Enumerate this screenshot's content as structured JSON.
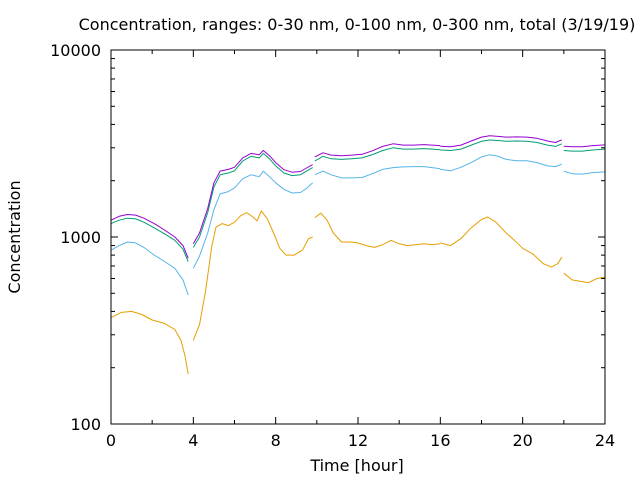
{
  "chart_data": {
    "type": "line",
    "title": "Concentration, ranges: 0-30 nm, 0-100 nm, 0-300 nm, total (3/19/19)",
    "xlabel": "Time [hour]",
    "ylabel": "Concentration",
    "xlim": [
      0,
      24
    ],
    "ylim": [
      100,
      10000
    ],
    "yscale": "log",
    "grid": false,
    "x_ticks": [
      "0",
      "4",
      "8",
      "12",
      "16",
      "20",
      "24"
    ],
    "y_ticks": [
      "100",
      "1000",
      "10000"
    ],
    "series": [
      {
        "color": "#e69f00",
        "segments": [
          [
            [
              0,
              370
            ],
            [
              0.5,
              395
            ],
            [
              1,
              400
            ],
            [
              1.5,
              385
            ],
            [
              2,
              360
            ],
            [
              2.6,
              345
            ],
            [
              3.1,
              320
            ],
            [
              3.4,
              280
            ],
            [
              3.6,
              230
            ],
            [
              3.75,
              185
            ]
          ],
          [
            [
              4,
              280
            ],
            [
              4.3,
              340
            ],
            [
              4.6,
              520
            ],
            [
              4.9,
              900
            ],
            [
              5.1,
              1130
            ],
            [
              5.4,
              1180
            ],
            [
              5.7,
              1150
            ],
            [
              6,
              1200
            ],
            [
              6.3,
              1300
            ],
            [
              6.6,
              1350
            ],
            [
              6.9,
              1280
            ],
            [
              7.1,
              1220
            ],
            [
              7.3,
              1380
            ],
            [
              7.6,
              1250
            ],
            [
              7.9,
              1050
            ],
            [
              8.2,
              870
            ],
            [
              8.5,
              800
            ],
            [
              8.9,
              800
            ],
            [
              9.3,
              850
            ],
            [
              9.6,
              980
            ],
            [
              9.8,
              1000
            ]
          ],
          [
            [
              9.9,
              1270
            ],
            [
              10.2,
              1340
            ],
            [
              10.5,
              1230
            ],
            [
              10.8,
              1050
            ],
            [
              11.2,
              940
            ],
            [
              11.6,
              940
            ],
            [
              12,
              930
            ],
            [
              12.4,
              900
            ],
            [
              12.8,
              880
            ],
            [
              13.2,
              910
            ],
            [
              13.6,
              960
            ],
            [
              14,
              920
            ],
            [
              14.4,
              900
            ],
            [
              14.8,
              910
            ],
            [
              15.2,
              920
            ],
            [
              15.6,
              910
            ],
            [
              16,
              920
            ]
          ],
          [
            [
              16,
              930
            ],
            [
              16.5,
              900
            ],
            [
              17,
              980
            ],
            [
              17.5,
              1120
            ],
            [
              18,
              1240
            ],
            [
              18.3,
              1280
            ],
            [
              18.7,
              1200
            ],
            [
              19.2,
              1050
            ],
            [
              19.6,
              960
            ],
            [
              20,
              870
            ],
            [
              20.5,
              810
            ],
            [
              21,
              720
            ],
            [
              21.4,
              690
            ],
            [
              21.7,
              720
            ],
            [
              21.9,
              780
            ]
          ],
          [
            [
              22,
              640
            ],
            [
              22.4,
              590
            ],
            [
              22.8,
              580
            ],
            [
              23.2,
              570
            ],
            [
              23.6,
              600
            ],
            [
              24,
              610
            ]
          ]
        ]
      },
      {
        "color": "#56b4e9",
        "segments": [
          [
            [
              0,
              850
            ],
            [
              0.4,
              900
            ],
            [
              0.8,
              940
            ],
            [
              1.2,
              930
            ],
            [
              1.6,
              880
            ],
            [
              2.1,
              800
            ],
            [
              2.6,
              740
            ],
            [
              3.1,
              680
            ],
            [
              3.5,
              590
            ],
            [
              3.75,
              490
            ]
          ],
          [
            [
              4,
              680
            ],
            [
              4.3,
              790
            ],
            [
              4.7,
              1050
            ],
            [
              5,
              1400
            ],
            [
              5.3,
              1700
            ],
            [
              5.7,
              1750
            ],
            [
              6,
              1830
            ],
            [
              6.4,
              2050
            ],
            [
              6.8,
              2150
            ],
            [
              7.2,
              2100
            ],
            [
              7.4,
              2250
            ],
            [
              7.7,
              2100
            ],
            [
              8,
              1950
            ],
            [
              8.4,
              1800
            ],
            [
              8.8,
              1720
            ],
            [
              9.2,
              1730
            ],
            [
              9.5,
              1820
            ],
            [
              9.8,
              1950
            ]
          ],
          [
            [
              9.9,
              2150
            ],
            [
              10.3,
              2250
            ],
            [
              10.7,
              2150
            ],
            [
              11.2,
              2070
            ],
            [
              11.7,
              2070
            ],
            [
              12.2,
              2080
            ],
            [
              12.7,
              2180
            ],
            [
              13.2,
              2300
            ],
            [
              13.7,
              2350
            ],
            [
              14.2,
              2370
            ],
            [
              14.7,
              2380
            ],
            [
              15.2,
              2380
            ],
            [
              15.6,
              2350
            ],
            [
              16,
              2320
            ]
          ],
          [
            [
              16,
              2300
            ],
            [
              16.5,
              2260
            ],
            [
              17,
              2360
            ],
            [
              17.5,
              2500
            ],
            [
              18,
              2680
            ],
            [
              18.4,
              2750
            ],
            [
              18.8,
              2700
            ],
            [
              19.2,
              2600
            ],
            [
              19.7,
              2560
            ],
            [
              20.2,
              2560
            ],
            [
              20.7,
              2500
            ],
            [
              21.2,
              2400
            ],
            [
              21.6,
              2380
            ],
            [
              21.9,
              2450
            ]
          ],
          [
            [
              22,
              2250
            ],
            [
              22.4,
              2180
            ],
            [
              22.9,
              2170
            ],
            [
              23.4,
              2210
            ],
            [
              24,
              2230
            ]
          ]
        ]
      },
      {
        "color": "#009e73",
        "segments": [
          [
            [
              0,
              1180
            ],
            [
              0.4,
              1230
            ],
            [
              0.8,
              1260
            ],
            [
              1.2,
              1250
            ],
            [
              1.6,
              1200
            ],
            [
              2.1,
              1120
            ],
            [
              2.6,
              1040
            ],
            [
              3.1,
              960
            ],
            [
              3.5,
              860
            ],
            [
              3.75,
              740
            ]
          ],
          [
            [
              4,
              880
            ],
            [
              4.3,
              1000
            ],
            [
              4.7,
              1350
            ],
            [
              5,
              1850
            ],
            [
              5.3,
              2150
            ],
            [
              5.7,
              2200
            ],
            [
              6,
              2260
            ],
            [
              6.4,
              2550
            ],
            [
              6.8,
              2700
            ],
            [
              7.2,
              2650
            ],
            [
              7.4,
              2800
            ],
            [
              7.7,
              2620
            ],
            [
              8,
              2400
            ],
            [
              8.4,
              2200
            ],
            [
              8.8,
              2130
            ],
            [
              9.2,
              2150
            ],
            [
              9.5,
              2250
            ],
            [
              9.8,
              2350
            ]
          ],
          [
            [
              9.9,
              2550
            ],
            [
              10.3,
              2700
            ],
            [
              10.7,
              2620
            ],
            [
              11.2,
              2600
            ],
            [
              11.7,
              2620
            ],
            [
              12.2,
              2650
            ],
            [
              12.7,
              2760
            ],
            [
              13.2,
              2900
            ],
            [
              13.7,
              3000
            ],
            [
              14.2,
              2950
            ],
            [
              14.7,
              2950
            ],
            [
              15.2,
              2970
            ],
            [
              15.6,
              2950
            ],
            [
              16,
              2930
            ]
          ],
          [
            [
              16,
              2920
            ],
            [
              16.5,
              2900
            ],
            [
              17,
              2950
            ],
            [
              17.5,
              3100
            ],
            [
              18,
              3250
            ],
            [
              18.4,
              3300
            ],
            [
              18.8,
              3280
            ],
            [
              19.2,
              3250
            ],
            [
              19.7,
              3260
            ],
            [
              20.2,
              3250
            ],
            [
              20.7,
              3200
            ],
            [
              21.2,
              3100
            ],
            [
              21.6,
              3050
            ],
            [
              21.9,
              3150
            ]
          ],
          [
            [
              22,
              2900
            ],
            [
              22.4,
              2880
            ],
            [
              22.9,
              2880
            ],
            [
              23.4,
              2920
            ],
            [
              24,
              2950
            ]
          ]
        ]
      },
      {
        "color": "#9400d3",
        "segments": [
          [
            [
              0,
              1230
            ],
            [
              0.4,
              1290
            ],
            [
              0.8,
              1320
            ],
            [
              1.2,
              1310
            ],
            [
              1.6,
              1260
            ],
            [
              2.1,
              1180
            ],
            [
              2.6,
              1090
            ],
            [
              3.1,
              1000
            ],
            [
              3.5,
              900
            ],
            [
              3.75,
              770
            ]
          ],
          [
            [
              4,
              920
            ],
            [
              4.3,
              1050
            ],
            [
              4.7,
              1420
            ],
            [
              5,
              1950
            ],
            [
              5.3,
              2250
            ],
            [
              5.7,
              2300
            ],
            [
              6,
              2360
            ],
            [
              6.4,
              2650
            ],
            [
              6.8,
              2800
            ],
            [
              7.2,
              2750
            ],
            [
              7.4,
              2900
            ],
            [
              7.7,
              2720
            ],
            [
              8,
              2500
            ],
            [
              8.4,
              2290
            ],
            [
              8.8,
              2220
            ],
            [
              9.2,
              2240
            ],
            [
              9.5,
              2340
            ],
            [
              9.8,
              2440
            ]
          ],
          [
            [
              9.9,
              2680
            ],
            [
              10.3,
              2820
            ],
            [
              10.7,
              2740
            ],
            [
              11.2,
              2720
            ],
            [
              11.7,
              2740
            ],
            [
              12.2,
              2770
            ],
            [
              12.7,
              2890
            ],
            [
              13.2,
              3050
            ],
            [
              13.7,
              3150
            ],
            [
              14.2,
              3100
            ],
            [
              14.7,
              3100
            ],
            [
              15.2,
              3120
            ],
            [
              15.6,
              3100
            ],
            [
              16,
              3080
            ]
          ],
          [
            [
              16,
              3060
            ],
            [
              16.5,
              3040
            ],
            [
              17,
              3100
            ],
            [
              17.5,
              3260
            ],
            [
              18,
              3420
            ],
            [
              18.4,
              3480
            ],
            [
              18.8,
              3450
            ],
            [
              19.2,
              3420
            ],
            [
              19.7,
              3430
            ],
            [
              20.2,
              3420
            ],
            [
              20.7,
              3370
            ],
            [
              21.2,
              3260
            ],
            [
              21.6,
              3200
            ],
            [
              21.9,
              3310
            ]
          ],
          [
            [
              22,
              3060
            ],
            [
              22.4,
              3040
            ],
            [
              22.9,
              3040
            ],
            [
              23.4,
              3080
            ],
            [
              24,
              3110
            ]
          ]
        ]
      }
    ]
  }
}
